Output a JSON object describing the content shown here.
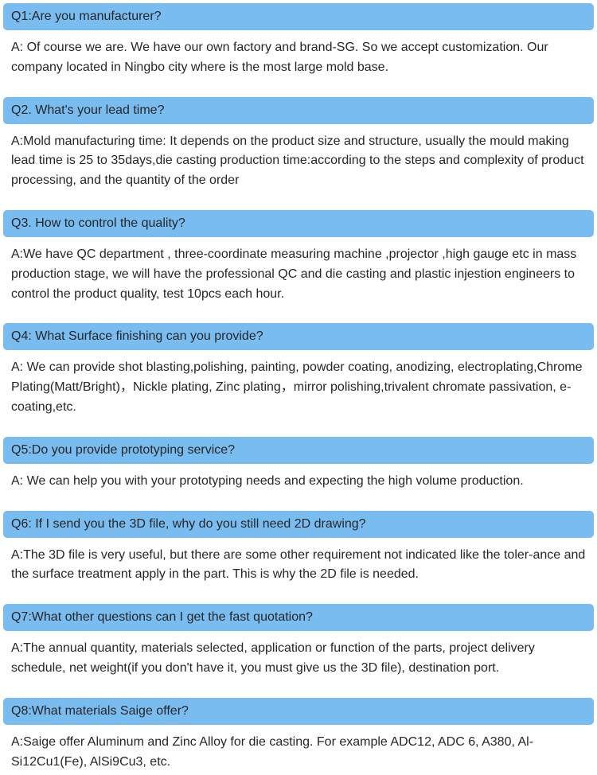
{
  "faq": [
    {
      "question": "Q1:Are you manufacturer?",
      "answer": "A: Of course we are. We have our own factory and brand-SG. So we accept customization. Our company located in Ningbo city where is the most large mold base."
    },
    {
      "question": "Q2. What's your lead time?",
      "answer": "A:Mold manufacturing time: It depends on the product size and structure, usually the mould making lead time is 25 to 35days,die casting production time:according to the steps and complexity of product processing, and the quantity of the order"
    },
    {
      "question": "Q3. How to control the quality?",
      "answer": "A:We have QC department , three-coordinate measuring machine ,projector ,high gauge etc in mass production stage, we will have the professional QC and die casting and plastic injestion engineers to control the product quality, test 10pcs each hour."
    },
    {
      "question": "Q4: What Surface finishing can you provide?",
      "answer": " A: We can provide shot blasting,polishing, painting, powder coating, anodizing, electroplating,Chrome Plating(Matt/Bright)，Nickle plating, Zinc plating，mirror polishing,trivalent chromate passivation, e-coating,etc."
    },
    {
      "question": "Q5:Do you provide prototyping service?",
      "answer": "A: We can help you with your prototyping needs and expecting the high volume production."
    },
    {
      "question": "Q6: If I send you the 3D file, why do you still need 2D drawing?",
      "answer": "A:The 3D file is very useful, but there are some other requirement not indicated like the toler-ance and the surface treatment apply in the part. This is why the 2D file is needed."
    },
    {
      "question": "Q7:What other questions can I get the fast quotation?",
      "answer": "A:The annual quantity, materials selected, application or function of the parts, project delivery schedule, net weight(if you don't have it, you must give us the 3D file), destination port."
    },
    {
      "question": "Q8:What materials Saige offer?",
      "answer": "A:Saige offer Aluminum and Zinc Alloy for die casting. For example ADC12, ADC 6, A380, Al-Si12Cu1(Fe), AlSi9Cu3, etc."
    }
  ],
  "styling": {
    "header_bg": "#79bcf0",
    "header_radius": 5,
    "text_color": "#262626",
    "body_bg": "#ffffff",
    "font_size": 16,
    "line_height": 1.55
  }
}
